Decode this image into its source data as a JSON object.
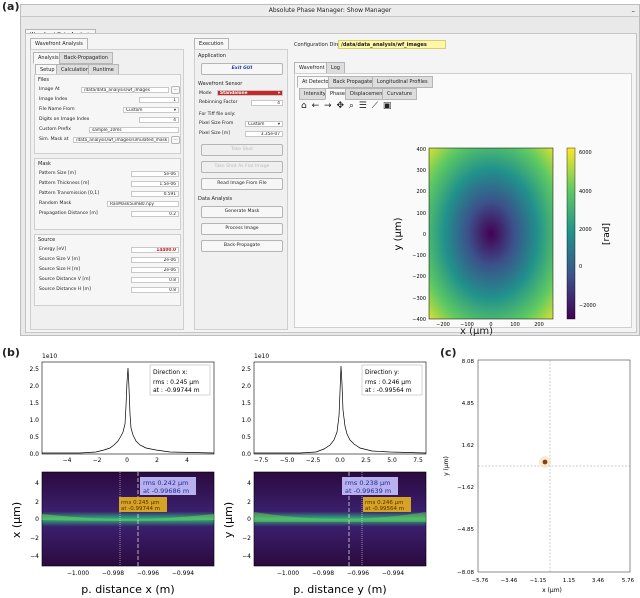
{
  "panels": {
    "a": "(a)",
    "b": "(b)",
    "c": "(c)"
  },
  "window": {
    "title": "Absolute Phase Manager: Show Manager",
    "main_tab": "Wavefront Data Analysis",
    "config_label": "Configuration Dire:",
    "config_value": "/data/data_analysis/wf_images"
  },
  "left": {
    "tab": "Wavefront Analysis",
    "tabs": [
      "Analysis",
      "Back-Propagation"
    ],
    "subtabs": [
      "Setup",
      "Calculation",
      "Runtime"
    ],
    "files_title": "Files",
    "files": [
      {
        "label": "Image At",
        "value": "/data/data_analysis/wf_images"
      },
      {
        "label": "Image Index",
        "value": "1"
      },
      {
        "label": "File Name From",
        "value": "Custom"
      },
      {
        "label": "Digits on Image Index",
        "value": "4"
      },
      {
        "label": "Custom Prefix",
        "value": "sample_10ms"
      },
      {
        "label": "Sim. Mask at",
        "value": "/data_analysis/wf_images/simulated_mask"
      }
    ],
    "mask_title": "Mask",
    "mask": [
      {
        "label": "Pattern Size [m]",
        "value": "5e-06"
      },
      {
        "label": "Pattern Thickness [m]",
        "value": "1.5e-06"
      },
      {
        "label": "Pattern Transmission [0,1]",
        "value": "0.591"
      },
      {
        "label": "Random Mask",
        "value": "RanMask5umB0.npy"
      },
      {
        "label": "Propagation Distance [m]",
        "value": "0.2"
      }
    ],
    "source_title": "Source",
    "source": [
      {
        "label": "Energy [eV]",
        "value": "14400.0"
      },
      {
        "label": "Source Size V [m]",
        "value": "2e-06"
      },
      {
        "label": "Source Size H [m]",
        "value": "2e-06"
      },
      {
        "label": "Source Distance V [m]",
        "value": "0.8"
      },
      {
        "label": "Source Distance H [m]",
        "value": "0.8"
      }
    ]
  },
  "exec": {
    "tab": "Execution",
    "application_title": "Application",
    "exit_label": "Exit GUI",
    "sensor_title": "Wavefront Sensor",
    "mode_label": "Mode",
    "mode_value": "Standalone",
    "rebinning_label": "Rebinning Factor",
    "rebinning_value": "4",
    "tiff_note": "For Tiff file only:",
    "pixel_from_label": "Pixel Size From",
    "pixel_from_value": "Custom",
    "pixel_size_label": "Pixel Size [m]",
    "pixel_size_value": "3.35e-07",
    "take_shot": "Take Shot",
    "take_shot_image": "Take Shot As Flat Image",
    "read_image": "Read Image From File",
    "analysis_title": "Data Analysis",
    "generate_mask": "Generate Mask",
    "process_image": "Process Image",
    "back_propagate": "Back-Propagate"
  },
  "right": {
    "tabs": [
      "Wavefront",
      "Log"
    ],
    "subtabs": [
      "At Detector",
      "Back Propagated",
      "Longitudinal Profiles"
    ],
    "plot_tabs": [
      "Intensity",
      "Phase",
      "Displacement",
      "Curvature"
    ],
    "toolbar_icons": [
      "home-icon",
      "back-arrow-icon",
      "forward-arrow-icon",
      "pan-icon",
      "zoom-icon",
      "configure-icon",
      "edit-curve-icon",
      "save-icon"
    ]
  },
  "phase_plot": {
    "xlabel": "x (µm)",
    "ylabel": "y (µm)",
    "colorbar_label": "[rad]",
    "xticks": [
      "−200",
      "−100",
      "0",
      "100",
      "200"
    ],
    "yticks": [
      "400",
      "300",
      "200",
      "100",
      "0",
      "−100",
      "−200",
      "−300",
      "−400"
    ],
    "cbar_ticks": [
      "6000",
      "4000",
      "2000",
      "0",
      "−2000"
    ]
  },
  "profile_x": {
    "scale_note": "1e10",
    "yticks": [
      "2.5",
      "2.0",
      "1.5",
      "1.0",
      "0.5",
      "0.0"
    ],
    "xticks": [
      "−4",
      "−2",
      "0",
      "2",
      "4"
    ],
    "legend_title": "Direction x:",
    "legend_rms": "rms  :  0.245 µm",
    "legend_at": "at  : -0.99744 m"
  },
  "profile_y": {
    "scale_note": "1e10",
    "yticks": [
      "2.5",
      "2.0",
      "1.5",
      "1.0",
      "0.5",
      "0.0"
    ],
    "xticks": [
      "−7.5",
      "−5.0",
      "−2.5",
      "0.0",
      "2.5",
      "5.0",
      "7.5"
    ],
    "legend_title": "Direction y:",
    "legend_rms": "rms  :  0.246 µm",
    "legend_at": "at  : -0.99564 m"
  },
  "caustic_x": {
    "ylabel": "x (µm)",
    "xlabel": "p. distance x (m)",
    "yticks": [
      "4",
      "2",
      "0",
      "−2",
      "−4"
    ],
    "xticks": [
      "−1.000",
      "−0.998",
      "−0.996",
      "−0.994"
    ],
    "box1_rms": "rms 0.242 µm",
    "box1_at": "at -0.99686 m",
    "box2_rms": "rms 0.245 µm",
    "box2_at": "at -0.99744 m"
  },
  "caustic_y": {
    "ylabel": "y (µm)",
    "xlabel": "p. distance y (m)",
    "yticks": [
      "4",
      "2",
      "0",
      "−2",
      "−4"
    ],
    "xticks": [
      "−1.000",
      "−0.998",
      "−0.996",
      "−0.994"
    ],
    "box1_rms": "rms 0.238 µm",
    "box1_at": "at -0.99639 m",
    "box2_rms": "rms 0.246 µm",
    "box2_at": "at -0.99564 m"
  },
  "spot": {
    "xlabel": "x (µm)",
    "ylabel": "y (µm)",
    "yticks": [
      "8.08",
      "4.85",
      "1.62",
      "−1.62",
      "−4.85",
      "−8.08"
    ],
    "xticks": [
      "−5.76",
      "−3.46",
      "−1.15",
      "1.15",
      "3.46",
      "5.76"
    ]
  },
  "colors": {
    "accent_yellow": "#fdf7a8",
    "energy_red": "#c21a1a",
    "mode_red": "#c62828",
    "viridis_dark": "#440154",
    "viridis_yellow": "#fde725"
  }
}
